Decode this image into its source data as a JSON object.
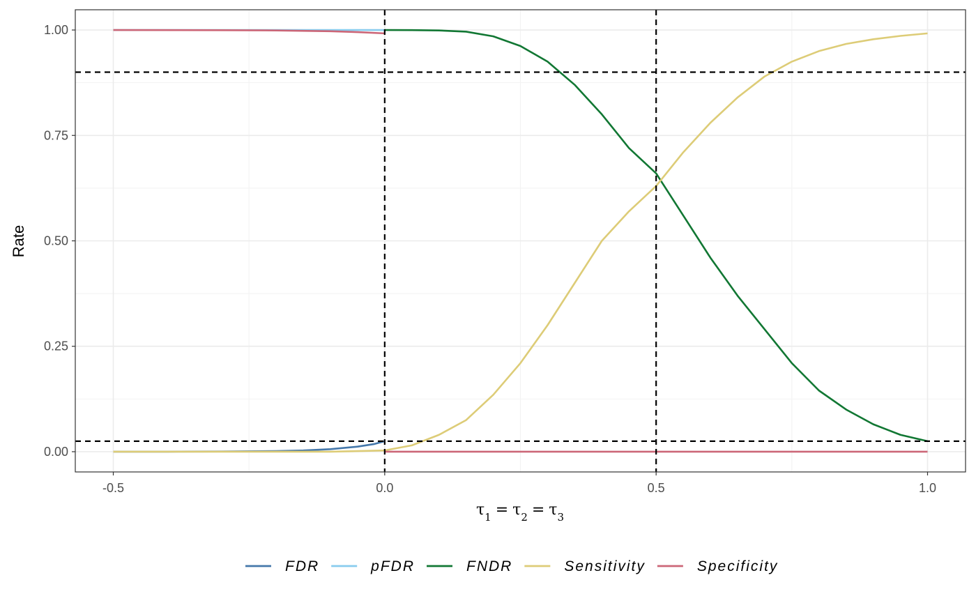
{
  "chart_data": {
    "type": "line",
    "xlabel": "τ1 = τ2 = τ3",
    "xlabel_parts": {
      "tau": "τ",
      "s1": "1",
      "s2": "2",
      "s3": "3",
      "eq": "="
    },
    "ylabel": "Rate",
    "xlim": [
      -0.57,
      1.07
    ],
    "ylim": [
      -0.048,
      1.048
    ],
    "x_ticks": [
      -0.5,
      0.0,
      0.5,
      1.0
    ],
    "x_tick_labels": [
      "-0.5",
      "0.0",
      "0.5",
      "1.0"
    ],
    "y_ticks": [
      0.0,
      0.25,
      0.5,
      0.75,
      1.0
    ],
    "y_tick_labels": [
      "0.00",
      "0.25",
      "0.50",
      "0.75",
      "1.00"
    ],
    "grid": true,
    "legend_position": "bottom",
    "reference_lines": {
      "vertical": [
        0.0,
        0.5
      ],
      "horizontal": [
        0.025,
        0.9
      ]
    },
    "series": [
      {
        "name": "FDR",
        "color": "#4477AA",
        "points": [
          [
            -0.5,
            0.0
          ],
          [
            -0.4,
            0.0001
          ],
          [
            -0.3,
            0.0005
          ],
          [
            -0.2,
            0.0015
          ],
          [
            -0.15,
            0.003
          ],
          [
            -0.1,
            0.006
          ],
          [
            -0.05,
            0.012
          ],
          [
            -0.02,
            0.018
          ],
          [
            0.0,
            0.025
          ]
        ]
      },
      {
        "name": "pFDR",
        "color": "#88CCEE",
        "points": [
          [
            -0.5,
            1.0
          ],
          [
            -0.3,
            1.0
          ],
          [
            -0.2,
            1.0
          ],
          [
            -0.1,
            1.0
          ],
          [
            0.0,
            1.0
          ]
        ]
      },
      {
        "name": "FNDR",
        "color": "#117733",
        "points": [
          [
            0.0,
            1.0
          ],
          [
            0.05,
            0.9998
          ],
          [
            0.1,
            0.999
          ],
          [
            0.15,
            0.996
          ],
          [
            0.2,
            0.985
          ],
          [
            0.25,
            0.962
          ],
          [
            0.3,
            0.925
          ],
          [
            0.35,
            0.87
          ],
          [
            0.4,
            0.8
          ],
          [
            0.45,
            0.72
          ],
          [
            0.5,
            0.66
          ],
          [
            0.55,
            0.56
          ],
          [
            0.6,
            0.46
          ],
          [
            0.65,
            0.37
          ],
          [
            0.7,
            0.29
          ],
          [
            0.75,
            0.21
          ],
          [
            0.8,
            0.145
          ],
          [
            0.85,
            0.1
          ],
          [
            0.9,
            0.065
          ],
          [
            0.95,
            0.04
          ],
          [
            1.0,
            0.025
          ]
        ]
      },
      {
        "name": "Sensitivity",
        "color": "#DDCC77",
        "points": [
          [
            -0.5,
            0.0
          ],
          [
            -0.3,
            0.0
          ],
          [
            -0.1,
            0.0
          ],
          [
            0.0,
            0.003
          ],
          [
            0.05,
            0.015
          ],
          [
            0.1,
            0.04
          ],
          [
            0.15,
            0.075
          ],
          [
            0.2,
            0.135
          ],
          [
            0.25,
            0.21
          ],
          [
            0.3,
            0.3
          ],
          [
            0.35,
            0.4
          ],
          [
            0.4,
            0.5
          ],
          [
            0.45,
            0.57
          ],
          [
            0.5,
            0.63
          ],
          [
            0.55,
            0.71
          ],
          [
            0.6,
            0.78
          ],
          [
            0.65,
            0.84
          ],
          [
            0.7,
            0.89
          ],
          [
            0.75,
            0.925
          ],
          [
            0.8,
            0.95
          ],
          [
            0.85,
            0.967
          ],
          [
            0.9,
            0.978
          ],
          [
            0.95,
            0.986
          ],
          [
            1.0,
            0.992
          ]
        ]
      },
      {
        "name": "Specificity",
        "color": "#CC6677",
        "points": [
          [
            -0.5,
            1.0
          ],
          [
            -0.3,
            0.9995
          ],
          [
            -0.2,
            0.999
          ],
          [
            -0.1,
            0.997
          ],
          [
            -0.05,
            0.995
          ],
          [
            0.0,
            0.992
          ],
          [
            0.0,
            0.0
          ],
          [
            0.5,
            0.0
          ],
          [
            1.0,
            0.0
          ]
        ]
      }
    ]
  }
}
